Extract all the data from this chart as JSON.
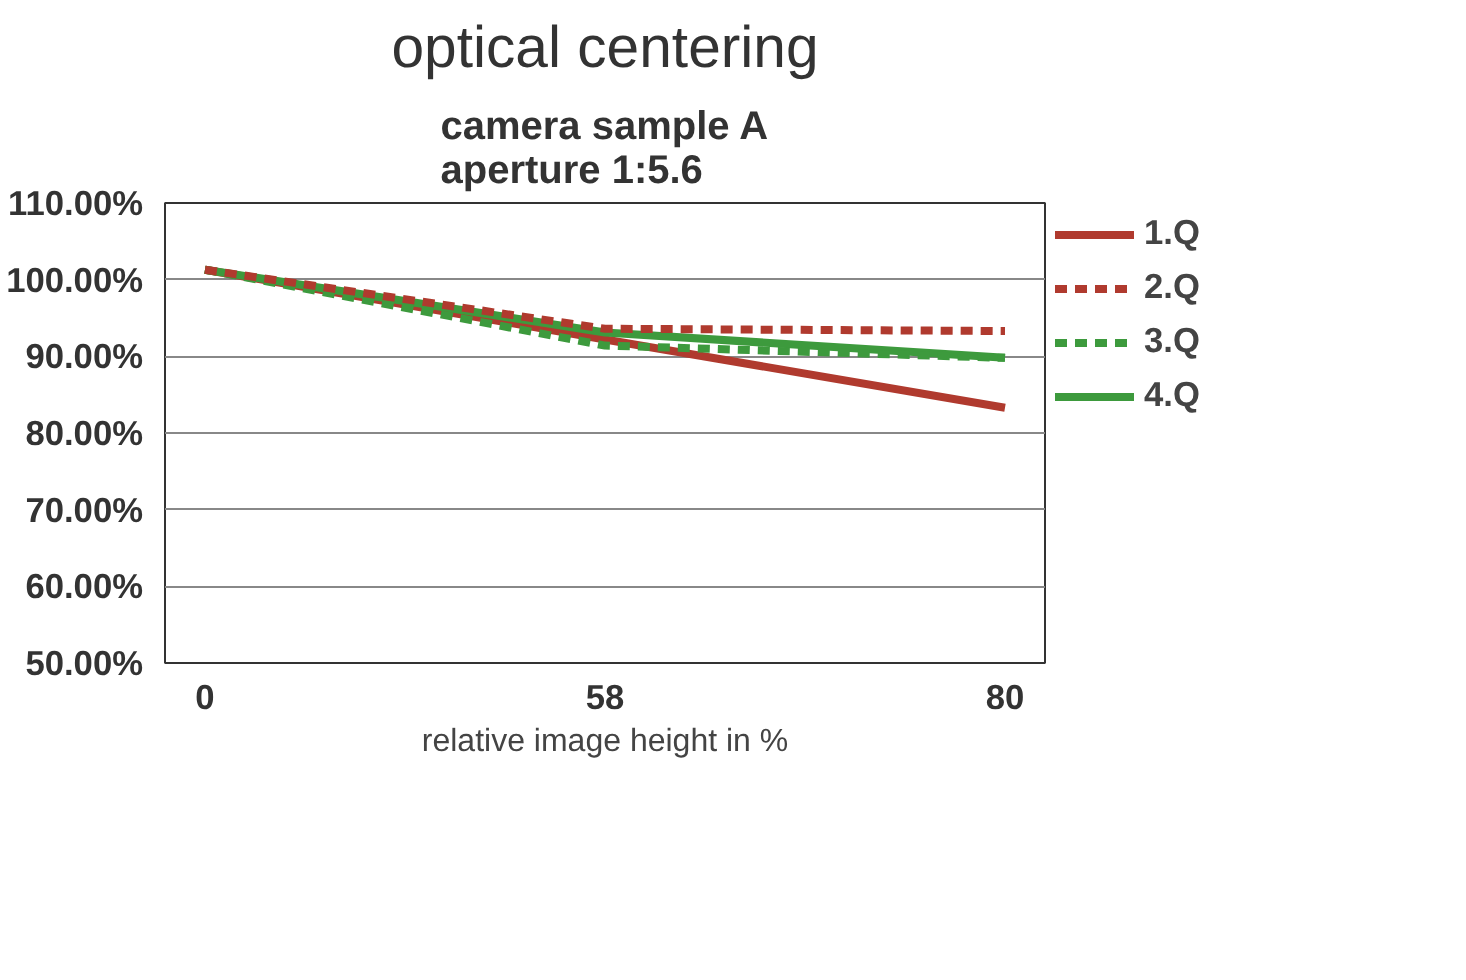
{
  "chart_data": {
    "type": "line",
    "title": "optical centering",
    "subtitle": "camera sample A\naperture 1:5.6",
    "xlabel": "relative image height in %",
    "categories": [
      "0",
      "58",
      "80"
    ],
    "series": [
      {
        "name": "1.Q",
        "color": "#b03a2e",
        "values": [
          101.3,
          92.2,
          83.3
        ],
        "line_style": "solid"
      },
      {
        "name": "2.Q",
        "color": "#b03a2e",
        "values": [
          101.3,
          93.6,
          93.3
        ],
        "line_style": "dashed"
      },
      {
        "name": "3.Q",
        "color": "#3d9a3d",
        "values": [
          101.3,
          91.4,
          89.8
        ],
        "line_style": "dashed"
      },
      {
        "name": "4.Q",
        "color": "#3d9a3d",
        "values": [
          101.3,
          93.1,
          89.8
        ],
        "line_style": "solid"
      }
    ],
    "ylim": [
      50,
      110
    ],
    "yticks": [
      {
        "value": 50,
        "label": "50.00%"
      },
      {
        "value": 60,
        "label": "60.00%"
      },
      {
        "value": 70,
        "label": "70.00%"
      },
      {
        "value": 80,
        "label": "80.00%"
      },
      {
        "value": 90,
        "label": "90.00%"
      },
      {
        "value": 100,
        "label": "100.00%"
      },
      {
        "value": 110,
        "label": "110.00%"
      }
    ],
    "grid": "y",
    "legend": "right",
    "marker": "none"
  }
}
